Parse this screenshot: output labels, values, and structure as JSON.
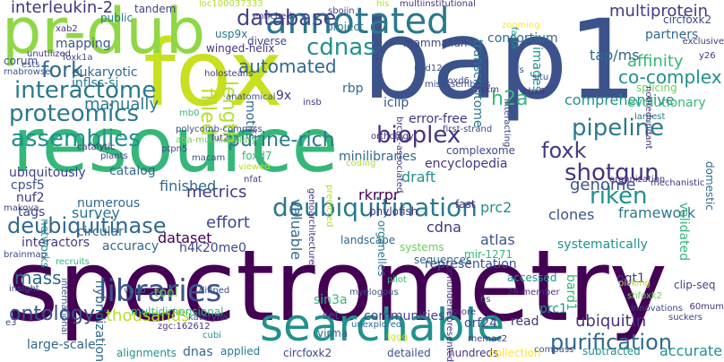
{
  "words": [
    {
      "text": "spectrometry",
      "color": "#440154"
    },
    {
      "text": "resource",
      "color": "#35b779"
    },
    {
      "text": "bap1",
      "color": "#3b528b"
    },
    {
      "text": "fox",
      "color": "#c8e020"
    },
    {
      "text": "pr-dub",
      "color": "#8fd744"
    },
    {
      "text": "searchable",
      "color": "#21918c"
    },
    {
      "text": "annotated",
      "color": "#2a788e"
    },
    {
      "text": "deubiquitination",
      "color": "#2a788e"
    },
    {
      "text": "deubiquitinase",
      "color": "#31688e"
    },
    {
      "text": "libraries",
      "color": "#3b528b"
    },
    {
      "text": "interactome",
      "color": "#2a788e"
    },
    {
      "text": "proteomics",
      "color": "#2a788e"
    },
    {
      "text": "assemblies",
      "color": "#21918c"
    },
    {
      "text": "pipeline",
      "color": "#2a788e"
    },
    {
      "text": "bioplex",
      "color": "#46337f"
    },
    {
      "text": "database",
      "color": "#414487"
    },
    {
      "text": "cdnas",
      "color": "#21918c"
    },
    {
      "text": "fork",
      "color": "#31688e"
    },
    {
      "text": "shotgun",
      "color": "#46337f"
    },
    {
      "text": "riken",
      "color": "#21918c"
    },
    {
      "text": "purification",
      "color": "#31688e"
    },
    {
      "text": "ontology",
      "color": "#3b528b"
    },
    {
      "text": "foxk",
      "color": "#443983"
    },
    {
      "text": "purine-rich",
      "color": "#2a788e"
    },
    {
      "text": "automated",
      "color": "#31688e"
    },
    {
      "text": "filled",
      "color": "#b5de2b"
    },
    {
      "text": "length",
      "color": "#b5de2b"
    },
    {
      "text": "interleukin-2",
      "color": "#46337f"
    },
    {
      "text": "multiprotein",
      "color": "#443983"
    },
    {
      "text": "affinity",
      "color": "#35b779"
    },
    {
      "text": "co-complex",
      "color": "#21918c"
    },
    {
      "text": "h2a",
      "color": "#35b779"
    },
    {
      "text": "tap/ms",
      "color": "#31688e"
    },
    {
      "text": "comprehensive",
      "color": "#21918c"
    },
    {
      "text": "mass",
      "color": "#31688e"
    },
    {
      "text": "thousands",
      "color": "#b5de2b"
    },
    {
      "text": "metrics",
      "color": "#443983"
    },
    {
      "text": "effort",
      "color": "#3e4989"
    },
    {
      "text": "ubiquitin",
      "color": "#46337f"
    },
    {
      "text": "accurate",
      "color": "#21918c"
    },
    {
      "text": "manually",
      "color": "#2a788e"
    },
    {
      "text": "consortium",
      "color": "#31688e"
    },
    {
      "text": "mammalian",
      "color": "#414487"
    },
    {
      "text": "transcriptome",
      "color": "#2a788e"
    },
    {
      "text": "images",
      "color": "#21918c"
    },
    {
      "text": "partners",
      "color": "#31688e"
    },
    {
      "text": "evolutionary",
      "color": "#35b779"
    },
    {
      "text": "splicing",
      "color": "#6ece58"
    },
    {
      "text": "genome",
      "color": "#3b528b"
    },
    {
      "text": "prc2",
      "color": "#21918c"
    },
    {
      "text": "cdna",
      "color": "#46337f"
    },
    {
      "text": "draft",
      "color": "#21918c"
    },
    {
      "text": "finished",
      "color": "#31688e"
    },
    {
      "text": "survey",
      "color": "#2a788e"
    },
    {
      "text": "tags",
      "color": "#414487"
    },
    {
      "text": "dataset",
      "color": "#440154"
    },
    {
      "text": "interactors",
      "color": "#443983"
    },
    {
      "text": "clones",
      "color": "#3b528b"
    },
    {
      "text": "framework",
      "color": "#2a788e"
    },
    {
      "text": "atlas",
      "color": "#3b528b"
    },
    {
      "text": "systematically",
      "color": "#21918c"
    },
    {
      "text": "validated",
      "color": "#35b779"
    },
    {
      "text": "domestic",
      "color": "#31688e"
    },
    {
      "text": "landscape",
      "color": "#31688e"
    },
    {
      "text": "representation",
      "color": "#3b528b"
    },
    {
      "text": "accessed",
      "color": "#21918c"
    },
    {
      "text": "valuable",
      "color": "#31688e"
    },
    {
      "text": "detailed",
      "color": "#3b528b"
    },
    {
      "text": "hundreds",
      "color": "#46337f"
    },
    {
      "text": "subtracted",
      "color": "#21918c"
    },
    {
      "text": "collection",
      "color": "#fde725"
    },
    {
      "text": "circfoxk2",
      "color": "#414487"
    },
    {
      "text": "dnas",
      "color": "#31688e"
    },
    {
      "text": "applied",
      "color": "#2a788e"
    },
    {
      "text": "alignments",
      "color": "#21918c"
    },
    {
      "text": "large-scale",
      "color": "#31688e"
    },
    {
      "text": "orf24",
      "color": "#3e4989"
    },
    {
      "text": "communities",
      "color": "#414487"
    },
    {
      "text": "set",
      "color": "#3e4989"
    },
    {
      "text": "read",
      "color": "#46337f"
    },
    {
      "text": "sin3a",
      "color": "#35b779"
    },
    {
      "text": "virma",
      "color": "#31688e"
    },
    {
      "text": "hybridization",
      "color": "#31688e"
    },
    {
      "text": "multidimensional",
      "color": "#35b779"
    },
    {
      "text": "tool",
      "color": "#6ece58"
    },
    {
      "text": "prc1",
      "color": "#21918c"
    },
    {
      "text": "bard1",
      "color": "#35b779"
    },
    {
      "text": "ogt1",
      "color": "#443983"
    },
    {
      "text": "h4k20me0",
      "color": "#3e4989"
    },
    {
      "text": "accuracy",
      "color": "#31688e"
    },
    {
      "text": "circular",
      "color": "#31688e"
    },
    {
      "text": "numerous",
      "color": "#31688e"
    },
    {
      "text": "networks",
      "color": "#21918c"
    },
    {
      "text": "catalog",
      "color": "#31688e"
    },
    {
      "text": "ubiquitously",
      "color": "#414487"
    },
    {
      "text": "cpsf5",
      "color": "#3b528b"
    },
    {
      "text": "nuf2",
      "color": "#46337f"
    },
    {
      "text": "encyclopedia",
      "color": "#46337f"
    },
    {
      "text": "complexome",
      "color": "#3e4989"
    },
    {
      "text": "error-free",
      "color": "#46337f"
    },
    {
      "text": "iclip",
      "color": "#3b528b"
    },
    {
      "text": "rkrrpr",
      "color": "#440154"
    },
    {
      "text": "phylofish",
      "color": "#46337f"
    },
    {
      "text": "organelles",
      "color": "#2a788e"
    },
    {
      "text": "systems",
      "color": "#6ece58"
    },
    {
      "text": "sequences",
      "color": "#31688e"
    },
    {
      "text": "mir-1271",
      "color": "#35b779"
    },
    {
      "text": "fast",
      "color": "#46337f"
    },
    {
      "text": "motifs",
      "color": "#31688e"
    },
    {
      "text": "9x",
      "color": "#443983"
    },
    {
      "text": "rbp",
      "color": "#31688e"
    },
    {
      "text": "project",
      "color": "#2a788e"
    },
    {
      "text": "usp9x",
      "color": "#2a788e"
    },
    {
      "text": "winged-helix",
      "color": "#46337f"
    },
    {
      "text": "diverse",
      "color": "#3e4989"
    },
    {
      "text": "eukaryotic",
      "color": "#31688e"
    },
    {
      "text": "mapping",
      "color": "#3b528b"
    },
    {
      "text": "inflss-si",
      "color": "#2a788e"
    },
    {
      "text": "corum",
      "color": "#3b528b"
    },
    {
      "text": "public",
      "color": "#2a788e"
    },
    {
      "text": "tandem",
      "color": "#414487"
    },
    {
      "text": "circfoxk2",
      "color": "#3e4989"
    },
    {
      "text": "minilibraries",
      "color": "#31688e"
    },
    {
      "text": "foxd7",
      "color": "#35b779"
    },
    {
      "text": "clip-seq",
      "color": "#414487"
    },
    {
      "text": "exclusive",
      "color": "#443983"
    },
    {
      "text": "y26",
      "color": "#46337f"
    },
    {
      "text": "largest",
      "color": "#2a788e"
    },
    {
      "text": "ned12",
      "color": "#3b528b"
    },
    {
      "text": "misassemblies",
      "color": "#3e4989"
    },
    {
      "text": "asxm",
      "color": "#46337f"
    },
    {
      "text": "cbx6",
      "color": "#46337f"
    },
    {
      "text": "foxd6",
      "color": "#3e4989"
    },
    {
      "text": "tfs",
      "color": "#3b528b"
    },
    {
      "text": "situ",
      "color": "#3b528b"
    },
    {
      "text": "rhemac2",
      "color": "#46337f"
    },
    {
      "text": "60mum",
      "color": "#46337f"
    },
    {
      "text": "suckers",
      "color": "#414487"
    },
    {
      "text": "innovations",
      "color": "#3e4989"
    },
    {
      "text": "shfoxk2",
      "color": "#6ece58"
    },
    {
      "text": "picking",
      "color": "#b5de2b"
    },
    {
      "text": "28-member",
      "color": "#46337f"
    },
    {
      "text": "ascore",
      "color": "#443983"
    },
    {
      "text": "compass",
      "color": "#3b528b"
    },
    {
      "text": "kateryna",
      "color": "#3b528b"
    },
    {
      "text": "myelogous",
      "color": "#3b528b"
    },
    {
      "text": "difined",
      "color": "#3e4989"
    },
    {
      "text": "insight",
      "color": "#3b528b"
    },
    {
      "text": "international",
      "color": "#3b528b"
    },
    {
      "text": "vapb",
      "color": "#31688e"
    },
    {
      "text": "zgc:162612",
      "color": "#46337f"
    },
    {
      "text": "e3",
      "color": "#3e4989"
    },
    {
      "text": "tggg",
      "color": "#c8e020"
    },
    {
      "text": "cubi",
      "color": "#21918c"
    },
    {
      "text": "unexplored",
      "color": "#31688e"
    },
    {
      "text": "hs",
      "color": "#3b528b"
    },
    {
      "text": "mechanistic",
      "color": "#46337f"
    },
    {
      "text": "organization",
      "color": "#443983"
    },
    {
      "text": "nonredundant",
      "color": "#46337f"
    },
    {
      "text": "makova",
      "color": "#414487"
    },
    {
      "text": "brainmap",
      "color": "#3e4989"
    },
    {
      "text": "recruits",
      "color": "#35b779"
    },
    {
      "text": "pilot",
      "color": "#35b779"
    },
    {
      "text": "viewed",
      "color": "#b5de2b"
    },
    {
      "text": "nfat",
      "color": "#443983"
    },
    {
      "text": "macam",
      "color": "#3b528b"
    },
    {
      "text": "lut2",
      "color": "#46337f"
    },
    {
      "text": "predicted",
      "color": "#b5de2b"
    },
    {
      "text": "coding",
      "color": "#b5de2b"
    },
    {
      "text": "genoarchitecture",
      "color": "#46337f"
    },
    {
      "text": "plants",
      "color": "#3e4989"
    },
    {
      "text": "catalytic",
      "color": "#46337f"
    },
    {
      "text": "ptpn5",
      "color": "#3e4989"
    },
    {
      "text": "polycomb-compass",
      "color": "#3e4989"
    },
    {
      "text": "aba-multicapillary",
      "color": "#6ece58"
    },
    {
      "text": "anatomical",
      "color": "#3b528b"
    },
    {
      "text": "insb",
      "color": "#46337f"
    },
    {
      "text": "holosteans",
      "color": "#443983"
    },
    {
      "text": "unutilized",
      "color": "#46337f"
    },
    {
      "text": "rnabrowse",
      "color": "#3b528b"
    },
    {
      "text": "ests",
      "color": "#3e4989"
    },
    {
      "text": "foxk1a",
      "color": "#3e4989"
    },
    {
      "text": "xab2",
      "color": "#46337f"
    },
    {
      "text": "mb0",
      "color": "#35b779"
    },
    {
      "text": "loc100037333",
      "color": "#b5de2b"
    },
    {
      "text": "enriched",
      "color": "#46337f"
    },
    {
      "text": "sbojin",
      "color": "#443983"
    },
    {
      "text": "his",
      "color": "#b5de2b"
    },
    {
      "text": "multiinstitutional",
      "color": "#46337f"
    },
    {
      "text": "zooming",
      "color": "#fde725"
    },
    {
      "text": "orthology",
      "color": "#46337f"
    },
    {
      "text": "first-strand",
      "color": "#3e4989"
    },
    {
      "text": "brca1-associated",
      "color": "#443983"
    },
    {
      "text": "nonunderrepresented",
      "color": "#46337f"
    },
    {
      "text": "interacting",
      "color": "#414487"
    },
    {
      "text": "fasta",
      "color": "#21918c"
    }
  ]
}
